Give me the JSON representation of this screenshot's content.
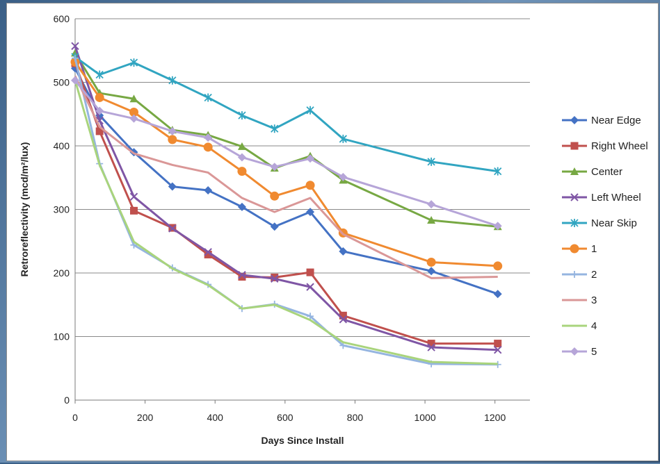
{
  "chart_data": {
    "type": "line",
    "title": "",
    "xlabel": "Days Since Install",
    "ylabel": "Retroreflectivity (mcd/m²/lux)",
    "xlim": [
      0,
      1300
    ],
    "ylim": [
      0,
      600
    ],
    "xticks": [
      0,
      200,
      400,
      600,
      800,
      1000,
      1200
    ],
    "yticks": [
      0,
      100,
      200,
      300,
      400,
      500,
      600
    ],
    "grid": "horizontal",
    "legend_position": "right",
    "x": [
      0,
      70,
      168,
      278,
      380,
      477,
      570,
      672,
      766,
      1018,
      1208
    ],
    "series": [
      {
        "name": "Near Edge",
        "color": "#4472C4",
        "marker": "diamond",
        "values": [
          522,
          448,
          390,
          336,
          330,
          304,
          273,
          296,
          234,
          203,
          167
        ]
      },
      {
        "name": "Right Wheel",
        "color": "#C0504D",
        "marker": "square",
        "values": [
          530,
          423,
          298,
          271,
          229,
          194,
          193,
          201,
          133,
          89,
          89
        ]
      },
      {
        "name": "Center",
        "color": "#77A843",
        "marker": "triangle",
        "values": [
          546,
          483,
          474,
          425,
          417,
          399,
          365,
          384,
          346,
          283,
          273
        ]
      },
      {
        "name": "Left Wheel",
        "color": "#7F56A5",
        "marker": "x",
        "values": [
          557,
          440,
          320,
          270,
          233,
          197,
          191,
          178,
          127,
          83,
          79
        ]
      },
      {
        "name": "Near Skip",
        "color": "#31A5C1",
        "marker": "asterisk",
        "values": [
          540,
          512,
          531,
          503,
          476,
          448,
          427,
          456,
          411,
          375,
          360
        ]
      },
      {
        "name": "1",
        "color": "#F08A30",
        "marker": "circle",
        "values": [
          532,
          476,
          453,
          410,
          398,
          360,
          321,
          338,
          263,
          217,
          211
        ]
      },
      {
        "name": "2",
        "color": "#95B5E0",
        "marker": "plus",
        "values": [
          538,
          372,
          244,
          208,
          182,
          144,
          151,
          132,
          86,
          57,
          56
        ]
      },
      {
        "name": "3",
        "color": "#DA9797",
        "marker": "none",
        "values": [
          510,
          430,
          388,
          370,
          358,
          318,
          296,
          318,
          261,
          192,
          194
        ]
      },
      {
        "name": "4",
        "color": "#A9D47C",
        "marker": "none",
        "values": [
          503,
          370,
          249,
          207,
          181,
          144,
          150,
          126,
          91,
          60,
          57
        ]
      },
      {
        "name": "5",
        "color": "#B6A5D8",
        "marker": "diamond",
        "values": [
          503,
          455,
          443,
          423,
          413,
          382,
          367,
          380,
          351,
          308,
          274
        ]
      }
    ]
  }
}
